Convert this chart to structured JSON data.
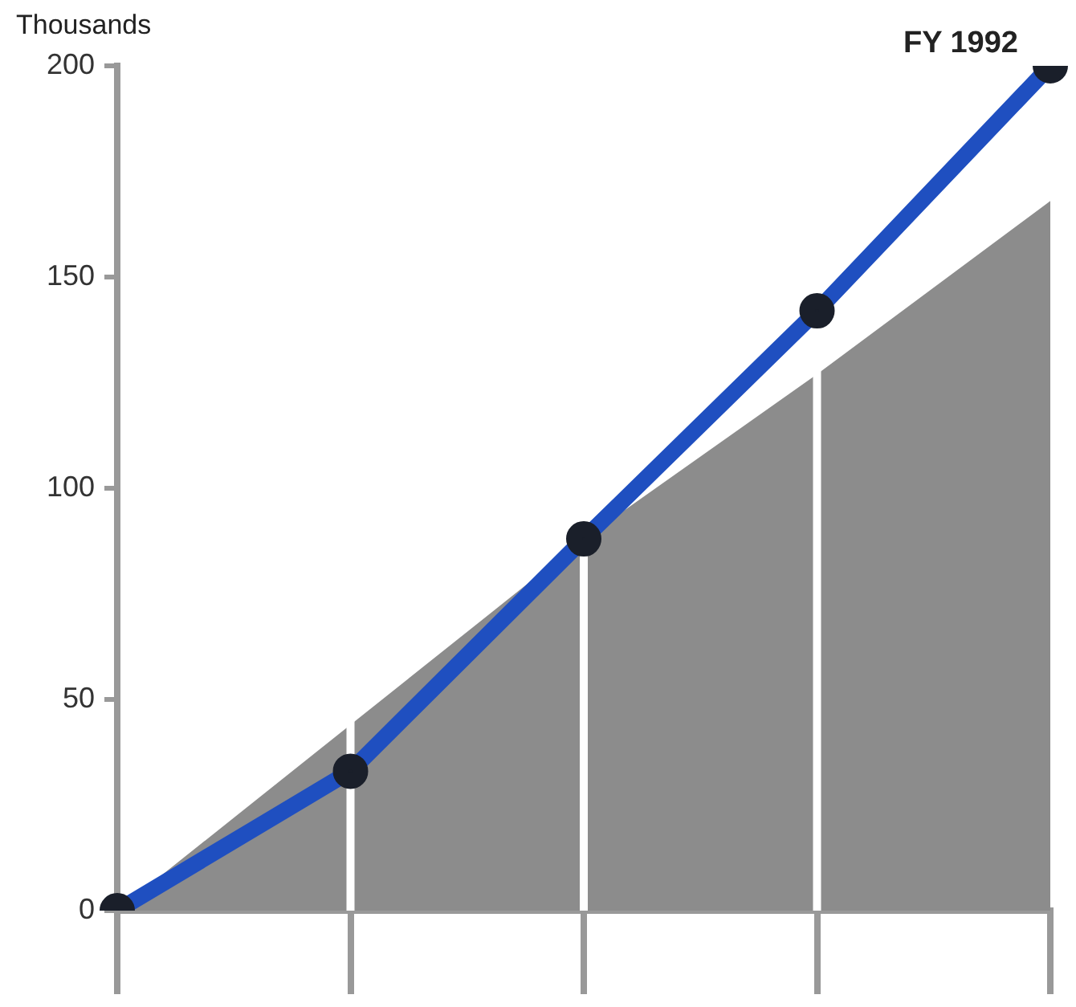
{
  "chart_data": {
    "type": "line",
    "ylabel": "Thousands",
    "categories": [
      null,
      null,
      null,
      null,
      null
    ],
    "ylim": [
      0,
      200
    ],
    "yticks": [
      0,
      50,
      100,
      150,
      200
    ],
    "tick_labels": "y",
    "grid": "x",
    "line_style": "solid",
    "legend": false,
    "series": [
      {
        "type": "area",
        "color": "#8c8c8c",
        "values": [
          0,
          44,
          88,
          127,
          168
        ]
      },
      {
        "color": "#1f4fc0",
        "marker": "circle",
        "values": [
          0,
          33,
          88,
          142,
          200
        ]
      }
    ],
    "annotations": [
      "FY 1992"
    ]
  }
}
